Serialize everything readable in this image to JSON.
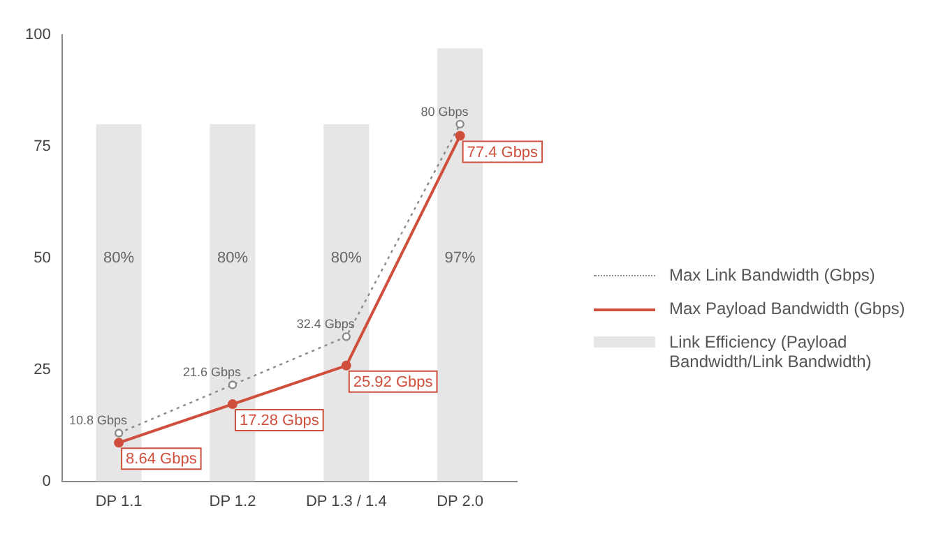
{
  "chart_data": {
    "type": "bar",
    "categories": [
      "DP 1.1",
      "DP 1.2",
      "DP 1.3 / 1.4",
      "DP 2.0"
    ],
    "series": [
      {
        "name": "Max Link Bandwidth (Gbps)",
        "type": "line",
        "color": "#8a8a8a",
        "line_style": "dotted",
        "marker": "circle",
        "values": [
          10.8,
          21.6,
          32.4,
          80
        ],
        "value_labels": [
          "10.8 Gbps",
          "21.6 Gbps",
          "32.4 Gbps",
          "80 Gbps"
        ]
      },
      {
        "name": "Max Payload Bandwidth (Gbps)",
        "type": "line",
        "color": "#cf4f3c",
        "line_style": "solid",
        "marker": "circle",
        "values": [
          8.64,
          17.28,
          25.92,
          77.4
        ],
        "value_labels": [
          "8.64 Gbps",
          "17.28 Gbps",
          "25.92 Gbps",
          "77.4 Gbps"
        ]
      },
      {
        "name": "Link Efficiency (Payload Bandwidth/Link Bandwidth)",
        "color": "#e6e6e6",
        "values": [
          80,
          80,
          80,
          97
        ],
        "value_labels": [
          "80%",
          "80%",
          "80%",
          "97%"
        ]
      }
    ],
    "ylim": [
      0,
      100
    ],
    "yticks": [
      0,
      25,
      50,
      75,
      100
    ],
    "grid": false,
    "legend": "right"
  }
}
